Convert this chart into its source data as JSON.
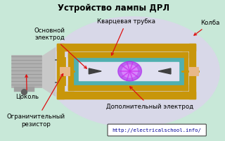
{
  "title": "Устройство лампы ДРЛ",
  "bg_color": "#c8e8d8",
  "label_osnovnoy": "Основной\nэлектрод",
  "label_kvartsevaya": "Кварцевая трубка",
  "label_kolba": "Колба",
  "label_tsokolj": "Цоколь",
  "label_ogranichitelny": "Ограничительный\nрезистор",
  "label_dopolnitelny": "Дополнительный электрод",
  "label_url": "http://electricalschool.info/",
  "color_bulb_fill": "#d8d8e8",
  "color_bulb_stroke": "#888888",
  "color_quartz": "#50b0b0",
  "color_gold": "#c8960a",
  "color_resistor": "#e8b888",
  "color_arc": "#cc44ff",
  "color_arrow": "#dd1111",
  "color_text": "#000000",
  "color_url_box": "#ffffff",
  "color_electrode": "#404040",
  "color_base": "#b0b0b0",
  "color_neck": "#c8c8c8"
}
